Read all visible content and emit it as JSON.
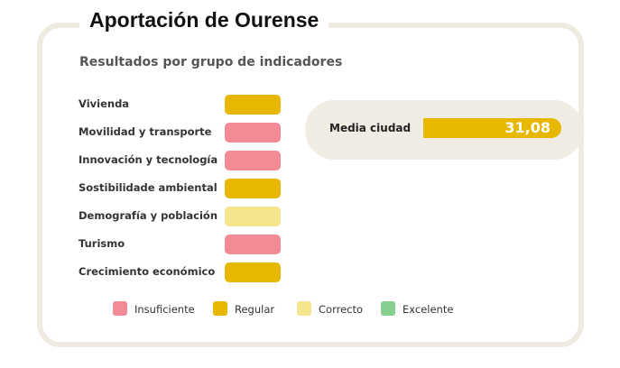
{
  "title": "Aportación de Ourense",
  "subtitle": "Resultados por grupo de indicadores",
  "colors": {
    "insuficiente": "#f28b96",
    "regular": "#e8b700",
    "correcto": "#f3e48e",
    "excelente": "#86cf8e",
    "card_border": "#efebe3",
    "pill_background": "#f0ece4"
  },
  "indicators": [
    {
      "label": "Vivienda",
      "rating": "regular"
    },
    {
      "label": "Movilidad y transporte",
      "rating": "insuficiente"
    },
    {
      "label": "Innovación y tecnología",
      "rating": "insuficiente"
    },
    {
      "label": "Sostibilidade ambiental",
      "rating": "regular"
    },
    {
      "label": "Demografía y población",
      "rating": "correcto"
    },
    {
      "label": "Turismo",
      "rating": "insuficiente"
    },
    {
      "label": "Crecimiento económico",
      "rating": "regular"
    }
  ],
  "media": {
    "label": "Media ciudad",
    "value": "31,08",
    "rating": "regular"
  },
  "legend": [
    {
      "key": "insuficiente",
      "label": "Insuficiente"
    },
    {
      "key": "regular",
      "label": "Regular"
    },
    {
      "key": "correcto",
      "label": "Correcto"
    },
    {
      "key": "excelente",
      "label": "Excelente"
    }
  ]
}
